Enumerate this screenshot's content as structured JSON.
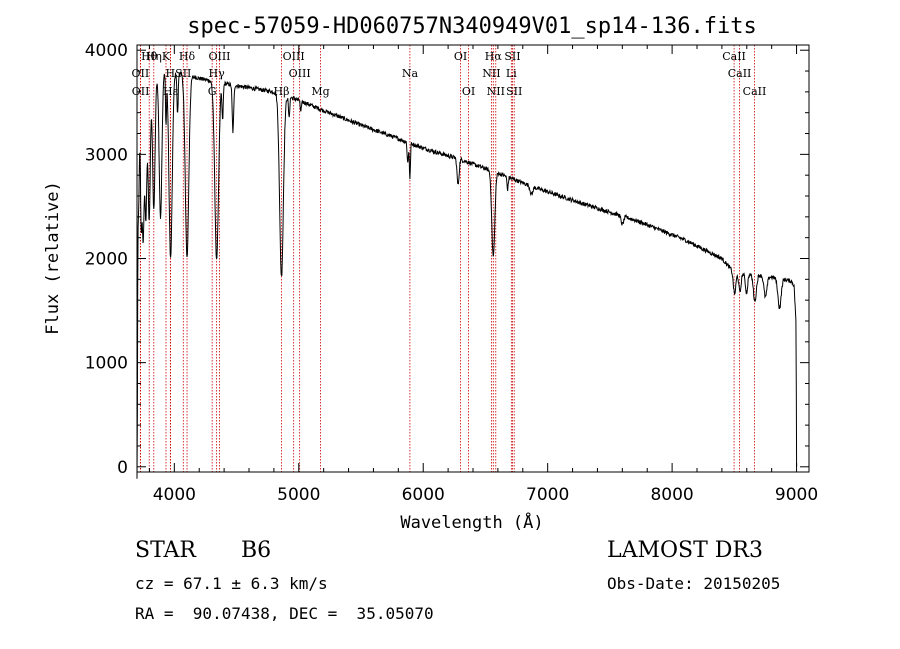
{
  "chart_data": {
    "type": "line",
    "title": "spec-57059-HD060757N340949V01_sp14-136.fits",
    "xlabel": "Wavelength (Å)",
    "ylabel": "Flux (relative)",
    "xlim": [
      3700,
      9100
    ],
    "ylim": [
      -50,
      4050
    ],
    "xticks": [
      4000,
      5000,
      6000,
      7000,
      8000,
      9000
    ],
    "yticks": [
      0,
      1000,
      2000,
      3000,
      4000
    ],
    "continuum": [
      [
        3700,
        3300
      ],
      [
        3760,
        3550
      ],
      [
        3820,
        3750
      ],
      [
        3880,
        3800
      ],
      [
        3950,
        3800
      ],
      [
        4050,
        3780
      ],
      [
        4200,
        3730
      ],
      [
        4400,
        3680
      ],
      [
        4600,
        3640
      ],
      [
        4800,
        3600
      ],
      [
        5000,
        3520
      ],
      [
        5200,
        3420
      ],
      [
        5500,
        3280
      ],
      [
        5800,
        3150
      ],
      [
        6000,
        3060
      ],
      [
        6300,
        2950
      ],
      [
        6600,
        2820
      ],
      [
        6900,
        2680
      ],
      [
        7300,
        2520
      ],
      [
        7700,
        2370
      ],
      [
        8100,
        2180
      ],
      [
        8400,
        2000
      ],
      [
        8500,
        1860
      ],
      [
        8700,
        1840
      ],
      [
        8900,
        1800
      ],
      [
        8960,
        1780
      ],
      [
        8980,
        1740
      ],
      [
        8995,
        1400
      ],
      [
        9000,
        300
      ]
    ],
    "absorption_features": [
      {
        "center": 3700,
        "depth": 3300,
        "width": 4
      },
      {
        "center": 3712,
        "depth": 900,
        "width": 6
      },
      {
        "center": 3734,
        "depth": 1100,
        "width": 6
      },
      {
        "center": 3750,
        "depth": 1300,
        "width": 7
      },
      {
        "center": 3771,
        "depth": 1200,
        "width": 8
      },
      {
        "center": 3798,
        "depth": 1300,
        "width": 9
      },
      {
        "center": 3835,
        "depth": 1300,
        "width": 10
      },
      {
        "center": 3889,
        "depth": 1400,
        "width": 11
      },
      {
        "center": 3933,
        "depth": 500,
        "width": 4
      },
      {
        "center": 3970,
        "depth": 1800,
        "width": 13
      },
      {
        "center": 4026,
        "depth": 400,
        "width": 5
      },
      {
        "center": 4102,
        "depth": 1750,
        "width": 14
      },
      {
        "center": 4340,
        "depth": 1700,
        "width": 15
      },
      {
        "center": 4388,
        "depth": 350,
        "width": 5
      },
      {
        "center": 4471,
        "depth": 450,
        "width": 6
      },
      {
        "center": 4861,
        "depth": 1750,
        "width": 15
      },
      {
        "center": 4922,
        "depth": 200,
        "width": 5
      },
      {
        "center": 5016,
        "depth": 120,
        "width": 4
      },
      {
        "center": 5876,
        "depth": 200,
        "width": 5
      },
      {
        "center": 5893,
        "depth": 350,
        "width": 4
      },
      {
        "center": 6280,
        "depth": 250,
        "width": 8
      },
      {
        "center": 6563,
        "depth": 820,
        "width": 12
      },
      {
        "center": 6678,
        "depth": 120,
        "width": 5
      },
      {
        "center": 6870,
        "depth": 80,
        "width": 10
      },
      {
        "center": 7600,
        "depth": 80,
        "width": 10
      },
      {
        "center": 8502,
        "depth": 200,
        "width": 10
      },
      {
        "center": 8545,
        "depth": 180,
        "width": 9
      },
      {
        "center": 8598,
        "depth": 180,
        "width": 9
      },
      {
        "center": 8665,
        "depth": 250,
        "width": 12
      },
      {
        "center": 8750,
        "depth": 200,
        "width": 12
      },
      {
        "center": 8863,
        "depth": 280,
        "width": 13
      }
    ],
    "lines": [
      {
        "label": "Hθ",
        "wavelength": 3798,
        "row": 0
      },
      {
        "label": "Hη",
        "wavelength": 3835,
        "row": 0
      },
      {
        "label": "K",
        "wavelength": 3933,
        "row": 0
      },
      {
        "label": "Hδ",
        "wavelength": 4102,
        "row": 0
      },
      {
        "label": "OIII",
        "wavelength": 4363,
        "row": 0
      },
      {
        "label": "OIII",
        "wavelength": 4959,
        "row": 0
      },
      {
        "label": "OI",
        "wavelength": 6300,
        "row": 0
      },
      {
        "label": "Hα",
        "wavelength": 6563,
        "row": 0
      },
      {
        "label": "SII",
        "wavelength": 6717,
        "row": 0
      },
      {
        "label": "CaII",
        "wavelength": 8498,
        "row": 0
      },
      {
        "label": "OII",
        "wavelength": 3727,
        "row": 1
      },
      {
        "label": "H",
        "wavelength": 3968,
        "row": 1
      },
      {
        "label": "SII",
        "wavelength": 4072,
        "row": 1
      },
      {
        "label": "Hγ",
        "wavelength": 4340,
        "row": 1
      },
      {
        "label": "OIII",
        "wavelength": 5007,
        "row": 1
      },
      {
        "label": "Na",
        "wavelength": 5893,
        "row": 1
      },
      {
        "label": "NII",
        "wavelength": 6548,
        "row": 1
      },
      {
        "label": "Li",
        "wavelength": 6708,
        "row": 1
      },
      {
        "label": "CaII",
        "wavelength": 8542,
        "row": 1
      },
      {
        "label": "OII",
        "wavelength": 3729,
        "row": 2
      },
      {
        "label": "Hε",
        "wavelength": 3970,
        "row": 2
      },
      {
        "label": "G",
        "wavelength": 4304,
        "row": 2
      },
      {
        "label": "Hβ",
        "wavelength": 4861,
        "row": 2
      },
      {
        "label": "Mg",
        "wavelength": 5175,
        "row": 2
      },
      {
        "label": "OI",
        "wavelength": 6364,
        "row": 2
      },
      {
        "label": "NII",
        "wavelength": 6583,
        "row": 2
      },
      {
        "label": "SII",
        "wavelength": 6731,
        "row": 2
      },
      {
        "label": "CaII",
        "wavelength": 8662,
        "row": 2
      }
    ]
  },
  "footer": {
    "object_type": "STAR",
    "subclass": "B6",
    "survey": "LAMOST DR3",
    "redshift": "cz = 67.1 ± 6.3 km/s",
    "obs_date": "Obs-Date: 20150205",
    "coordinates": "RA =  90.07438, DEC =  35.05070"
  },
  "colors": {
    "spectrum": "#000000",
    "line_markers": "#cc0000",
    "axes": "#000000"
  }
}
